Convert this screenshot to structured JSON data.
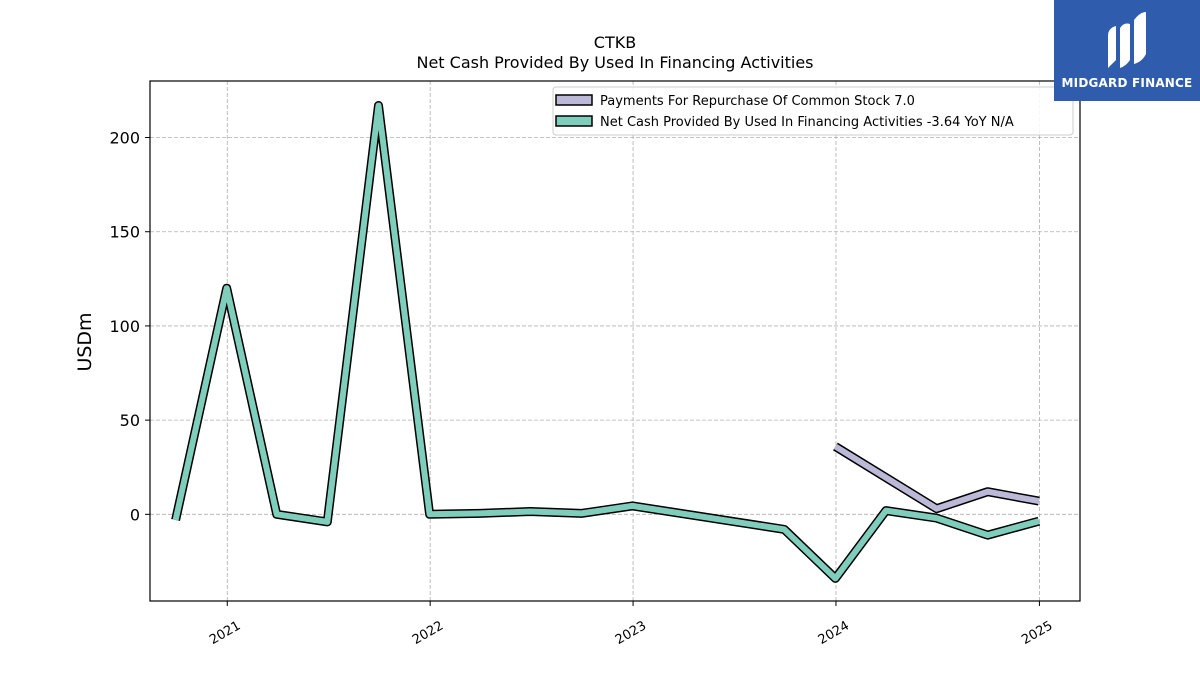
{
  "chart_data": {
    "type": "line",
    "title": "CTKB",
    "subtitle": "Net Cash Provided By Used In Financing Activities",
    "ylabel": "USDm",
    "xlabel": "",
    "ylim": [
      -46,
      230
    ],
    "xlim": [
      "2020-08-15",
      "2025-03-15"
    ],
    "yticks": [
      0,
      50,
      100,
      150,
      200
    ],
    "xticks": [
      "2021-01-01",
      "2022-01-01",
      "2023-01-01",
      "2024-01-01",
      "2025-01-01"
    ],
    "xtick_labels": [
      "2021",
      "2022",
      "2023",
      "2024",
      "2025"
    ],
    "grid": true,
    "legend_position": "top-right",
    "series": [
      {
        "name": "Payments For Repurchase Of Common Stock",
        "legend_label": "Payments For Repurchase Of Common Stock  7.0",
        "color": "#bcb8d8",
        "points": [
          {
            "x": "2023-12-31",
            "y": 36
          },
          {
            "x": "2024-06-30",
            "y": 3
          },
          {
            "x": "2024-09-30",
            "y": 12
          },
          {
            "x": "2024-12-31",
            "y": 7
          }
        ]
      },
      {
        "name": "Net Cash Provided By Used In Financing Activities",
        "legend_label": "Net Cash Provided By Used In Financing Activities  -3.64 YoY N/A",
        "color": "#7fcdbb",
        "points": [
          {
            "x": "2020-09-30",
            "y": -3
          },
          {
            "x": "2020-12-31",
            "y": 120
          },
          {
            "x": "2021-03-31",
            "y": 0
          },
          {
            "x": "2021-06-30",
            "y": -4
          },
          {
            "x": "2021-09-30",
            "y": 217
          },
          {
            "x": "2021-12-31",
            "y": 0
          },
          {
            "x": "2022-03-31",
            "y": 0.5
          },
          {
            "x": "2022-06-30",
            "y": 1.5
          },
          {
            "x": "2022-09-30",
            "y": 0.5
          },
          {
            "x": "2022-12-31",
            "y": 4.5
          },
          {
            "x": "2023-09-30",
            "y": -8
          },
          {
            "x": "2023-12-31",
            "y": -34
          },
          {
            "x": "2024-03-31",
            "y": 2
          },
          {
            "x": "2024-06-30",
            "y": -2
          },
          {
            "x": "2024-09-30",
            "y": -11
          },
          {
            "x": "2024-12-31",
            "y": -3.64
          }
        ]
      }
    ]
  },
  "logo": {
    "text": "MIDGARD FINANCE",
    "background": "#2f5cad"
  }
}
